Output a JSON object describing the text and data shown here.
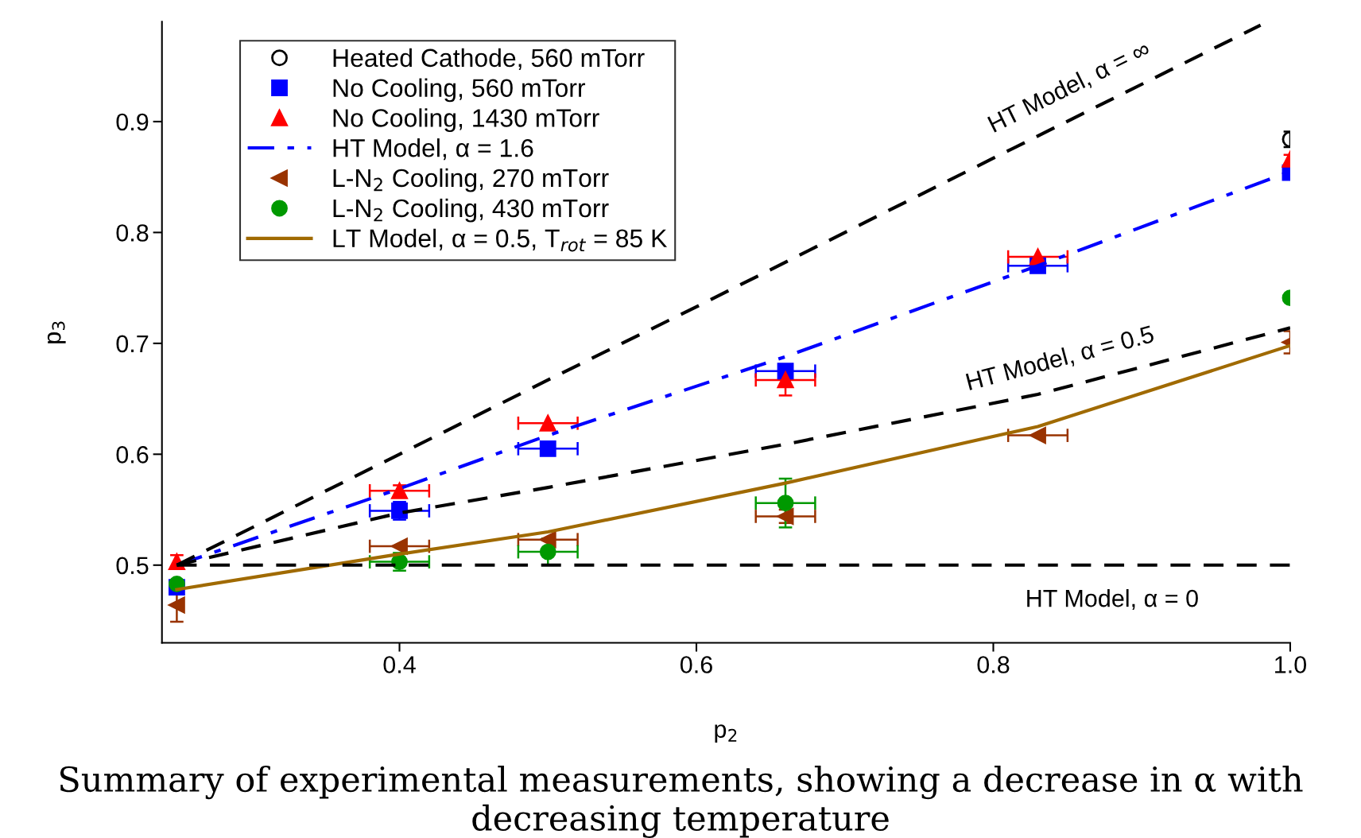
{
  "chart_data": {
    "type": "scatter",
    "xlabel": "p$_{2}$",
    "ylabel": "p$_{3}$",
    "xlim": [
      0.24,
      1.0
    ],
    "ylim": [
      0.43,
      0.99
    ],
    "xticks": [
      0.4,
      0.6,
      0.8,
      {
        "value": 1.0,
        "label": "1.0"
      }
    ],
    "yticks": [
      0.5,
      0.6,
      0.7,
      0.8,
      0.9
    ],
    "grid": false,
    "legend": "top left",
    "annotations": [
      {
        "text": "HT Model, α = ∞",
        "x": 0.86,
        "y": 0.907
      },
      {
        "text": "HT Model, α = 0.5",
        "x": 0.85,
        "y": 0.66
      },
      {
        "text": "HT Model, α = 0",
        "x": 0.88,
        "y": 0.5
      },
      "Summary of experimental measurements, showing a decrease in α with decreasing temperature"
    ],
    "series": [
      {
        "name": "Heated Cathode, 560 mTorr",
        "marker": "circle-open",
        "color": "#000000",
        "x": [
          1.0
        ],
        "values": [
          0.884
        ],
        "errors": [
          0.007
        ]
      },
      {
        "name": "No Cooling, 560 mTorr",
        "marker": "square",
        "color": "#0000ff",
        "x": [
          0.25,
          0.4,
          0.5,
          0.66,
          0.83,
          1.0
        ],
        "values": [
          0.48,
          0.549,
          0.605,
          0.675,
          0.77,
          0.854
        ],
        "xerrors": [
          null,
          0.02,
          0.02,
          0.02,
          0.02,
          null
        ],
        "errors": [
          0.005,
          0.008,
          null,
          null,
          null,
          null
        ]
      },
      {
        "name": "No Cooling, 1430 mTorr",
        "marker": "triangle",
        "color": "#ff0000",
        "x": [
          0.25,
          0.4,
          0.5,
          0.66,
          0.83,
          1.0
        ],
        "values": [
          0.503,
          0.567,
          0.628,
          0.667,
          0.778,
          0.866
        ],
        "xerrors": [
          null,
          0.02,
          0.02,
          0.02,
          0.02,
          null
        ],
        "errors": [
          0.006,
          0.005,
          null,
          0.014,
          null,
          0.004
        ]
      },
      {
        "name": "HT Model, α = 1.6",
        "type": "line",
        "line_style": "dashdot",
        "color": "#0000ff",
        "x": [
          0.25,
          0.4,
          0.5,
          0.66,
          0.83,
          1.0
        ],
        "values": [
          0.5,
          0.569,
          0.617,
          0.688,
          0.77,
          0.855
        ]
      },
      {
        "name": "L-N$_{2}$ Cooling, 270 mTorr",
        "marker": "triangle-left",
        "color": "#993300",
        "x": [
          0.25,
          0.4,
          0.5,
          0.66,
          0.83,
          1.0
        ],
        "values": [
          0.464,
          0.517,
          0.523,
          0.544,
          0.617,
          0.701
        ],
        "xerrors": [
          null,
          0.02,
          0.02,
          0.02,
          0.02,
          null
        ],
        "errors": [
          0.015,
          null,
          null,
          0.006,
          null,
          0.01
        ]
      },
      {
        "name": "L-N$_{2}$ Cooling, 430 mTorr",
        "marker": "circle",
        "color": "#009900",
        "x": [
          0.25,
          0.4,
          0.5,
          0.66,
          1.0
        ],
        "values": [
          0.483,
          0.503,
          0.512,
          0.556,
          0.741
        ],
        "xerrors": [
          null,
          0.02,
          0.02,
          0.02,
          null
        ],
        "errors": [
          null,
          0.008,
          0.012,
          0.022,
          null
        ]
      },
      {
        "name": "LT Model, α = 0.5, T$_{rot}$ = 85 K",
        "type": "line",
        "line_style": "solid",
        "color": "#a06a00",
        "x": [
          0.25,
          0.4,
          0.5,
          0.66,
          0.83,
          1.0
        ],
        "values": [
          0.478,
          0.51,
          0.53,
          0.574,
          0.625,
          0.698
        ]
      },
      {
        "type": "line",
        "line_style": "dashed",
        "color": "#000000",
        "x": [
          0.25,
          0.4,
          0.5,
          0.6,
          0.8,
          0.98
        ],
        "values": [
          0.5,
          0.6,
          0.667,
          0.733,
          0.867,
          0.987
        ]
      },
      {
        "type": "line",
        "line_style": "dashed",
        "color": "#000000",
        "x": [
          0.25,
          0.4,
          0.5,
          0.66,
          0.83,
          1.0
        ],
        "values": [
          0.5,
          0.547,
          0.57,
          0.609,
          0.654,
          0.714
        ]
      },
      {
        "type": "line",
        "line_style": "dashed",
        "color": "#000000",
        "x": [
          0.25,
          1.0
        ],
        "values": [
          0.5,
          0.5
        ]
      }
    ]
  }
}
